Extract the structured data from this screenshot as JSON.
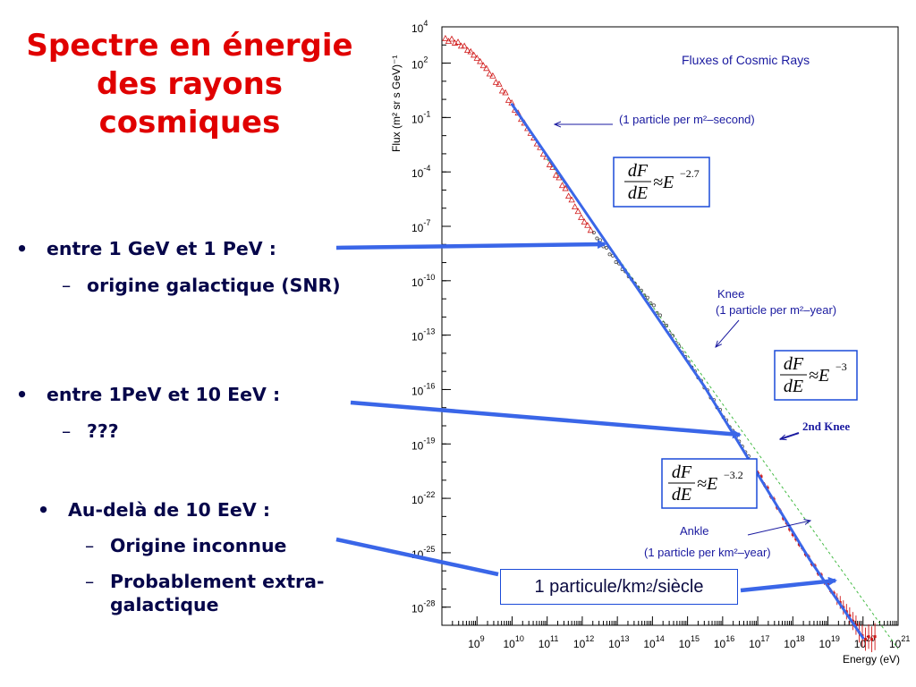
{
  "slide": {
    "title_lines": [
      "Spectre en énergie",
      "des rayons",
      "cosmiques"
    ],
    "bullets": [
      {
        "marker": "•",
        "text": "entre 1 GeV et 1 PeV :",
        "subs": [
          {
            "marker": "–",
            "text": "origine galactique (SNR)"
          }
        ]
      },
      {
        "marker": "•",
        "text": "entre 1PeV et 10 EeV :",
        "subs": [
          {
            "marker": "–",
            "text": "???"
          }
        ]
      },
      {
        "marker": "•",
        "text": "Au-delà de 10 EeV :",
        "subs": [
          {
            "marker": "–",
            "text": "Origine inconnue"
          },
          {
            "marker": "–",
            "text": "Probablement extra-galactique"
          }
        ]
      }
    ],
    "callout": {
      "text_before": "1 particule/km ",
      "sup": "2",
      "text_after": "/siècle"
    },
    "colors": {
      "title": "#e00000",
      "text": "#06064a",
      "arrow": "#3a66e8",
      "fit": "#3a66e8",
      "data": "#d01818",
      "annotation": "#1a1aa0",
      "green_ref": "#44bb44"
    }
  },
  "chart_data": {
    "type": "scatter",
    "title": "Fluxes of Cosmic Rays",
    "xlabel": "Energy (eV)",
    "ylabel": "Flux (m² sr s GeV)⁻¹",
    "x_scale": "log",
    "y_scale": "log",
    "xlim": [
      100000000.0,
      1e+21
    ],
    "ylim": [
      1e-29,
      10000.0
    ],
    "x_tick_labels": [
      "10^9",
      "10^10",
      "10^11",
      "10^12",
      "10^13",
      "10^14",
      "10^15",
      "10^16",
      "10^17",
      "10^18",
      "10^19",
      "10^20",
      "10^21"
    ],
    "y_tick_labels": [
      "10^4",
      "10^2",
      "10^-1",
      "10^-4",
      "10^-7",
      "10^-10",
      "10^-13",
      "10^-16",
      "10^-19",
      "10^-22",
      "10^-25",
      "10^-28"
    ],
    "series": [
      {
        "kind": "data",
        "points": [
          [
            120000000.0,
            2000.0
          ],
          [
            200000000.0,
            1800.0
          ],
          [
            400000000.0,
            900.0
          ],
          [
            800000000.0,
            300.0
          ],
          [
            1500000000.0,
            80.0
          ],
          [
            3000000000.0,
            15.0
          ],
          [
            6000000000.0,
            2.5
          ],
          [
            12000000000.0,
            0.3
          ],
          [
            30000000000.0,
            0.02
          ],
          [
            100000000000.0,
            0.0005
          ],
          [
            300000000000.0,
            1.5e-05
          ],
          [
            1000000000000.0,
            2.5e-07
          ],
          [
            10000000000000.0,
            1e-09
          ],
          [
            100000000000000.0,
            5e-12
          ],
          [
            1000000000000000.0,
            4e-15
          ],
          [
            3000000000000000.0,
            1.5e-16
          ],
          [
            1e+16,
            4e-18
          ],
          [
            1e+17,
            3e-21
          ],
          [
            1e+18,
            1e-24
          ],
          [
            5e+18,
            1e-26
          ],
          [
            1e+19,
            1.5e-27
          ],
          [
            5e+19,
            2e-29
          ],
          [
            1e+20,
            2e-30
          ]
        ]
      },
      {
        "kind": "fit",
        "label": "dF/dE ≈ E^-2.7",
        "x_range": [
          10000000000.0,
          3000000000000000.0
        ]
      },
      {
        "kind": "fit",
        "label": "dF/dE ≈ E^-3",
        "x_range": [
          3000000000000000.0,
          3e+18
        ]
      },
      {
        "kind": "fit",
        "label": "dF/dE ≈ E^-3.2",
        "x_range": [
          3e+18,
          1e+20
        ]
      },
      {
        "kind": "reference",
        "label": "E^-2.7 extrapolation",
        "x_range": [
          100000000000.0,
          1e+21
        ]
      }
    ],
    "annotations": [
      {
        "text": "(1 particle per m²–second)",
        "x": 100000000000.0
      },
      {
        "text": "Knee",
        "x": 3000000000000000.0
      },
      {
        "text": "(1 particle per m²–year)",
        "x": 3000000000000000.0
      },
      {
        "text": "2nd Knee",
        "x": 4e+17
      },
      {
        "text": "Ankle",
        "x": 5e+18
      },
      {
        "text": "(1 particle per km²–year)",
        "x": 5e+18
      }
    ],
    "formulas": [
      {
        "num": "dF",
        "den": "dE",
        "rel": "≈E",
        "exp": "−2.7"
      },
      {
        "num": "dF",
        "den": "dE",
        "rel": "≈E",
        "exp": "−3"
      },
      {
        "num": "dF",
        "den": "dE",
        "rel": "≈E",
        "exp": "−3.2"
      }
    ],
    "grid": false
  }
}
